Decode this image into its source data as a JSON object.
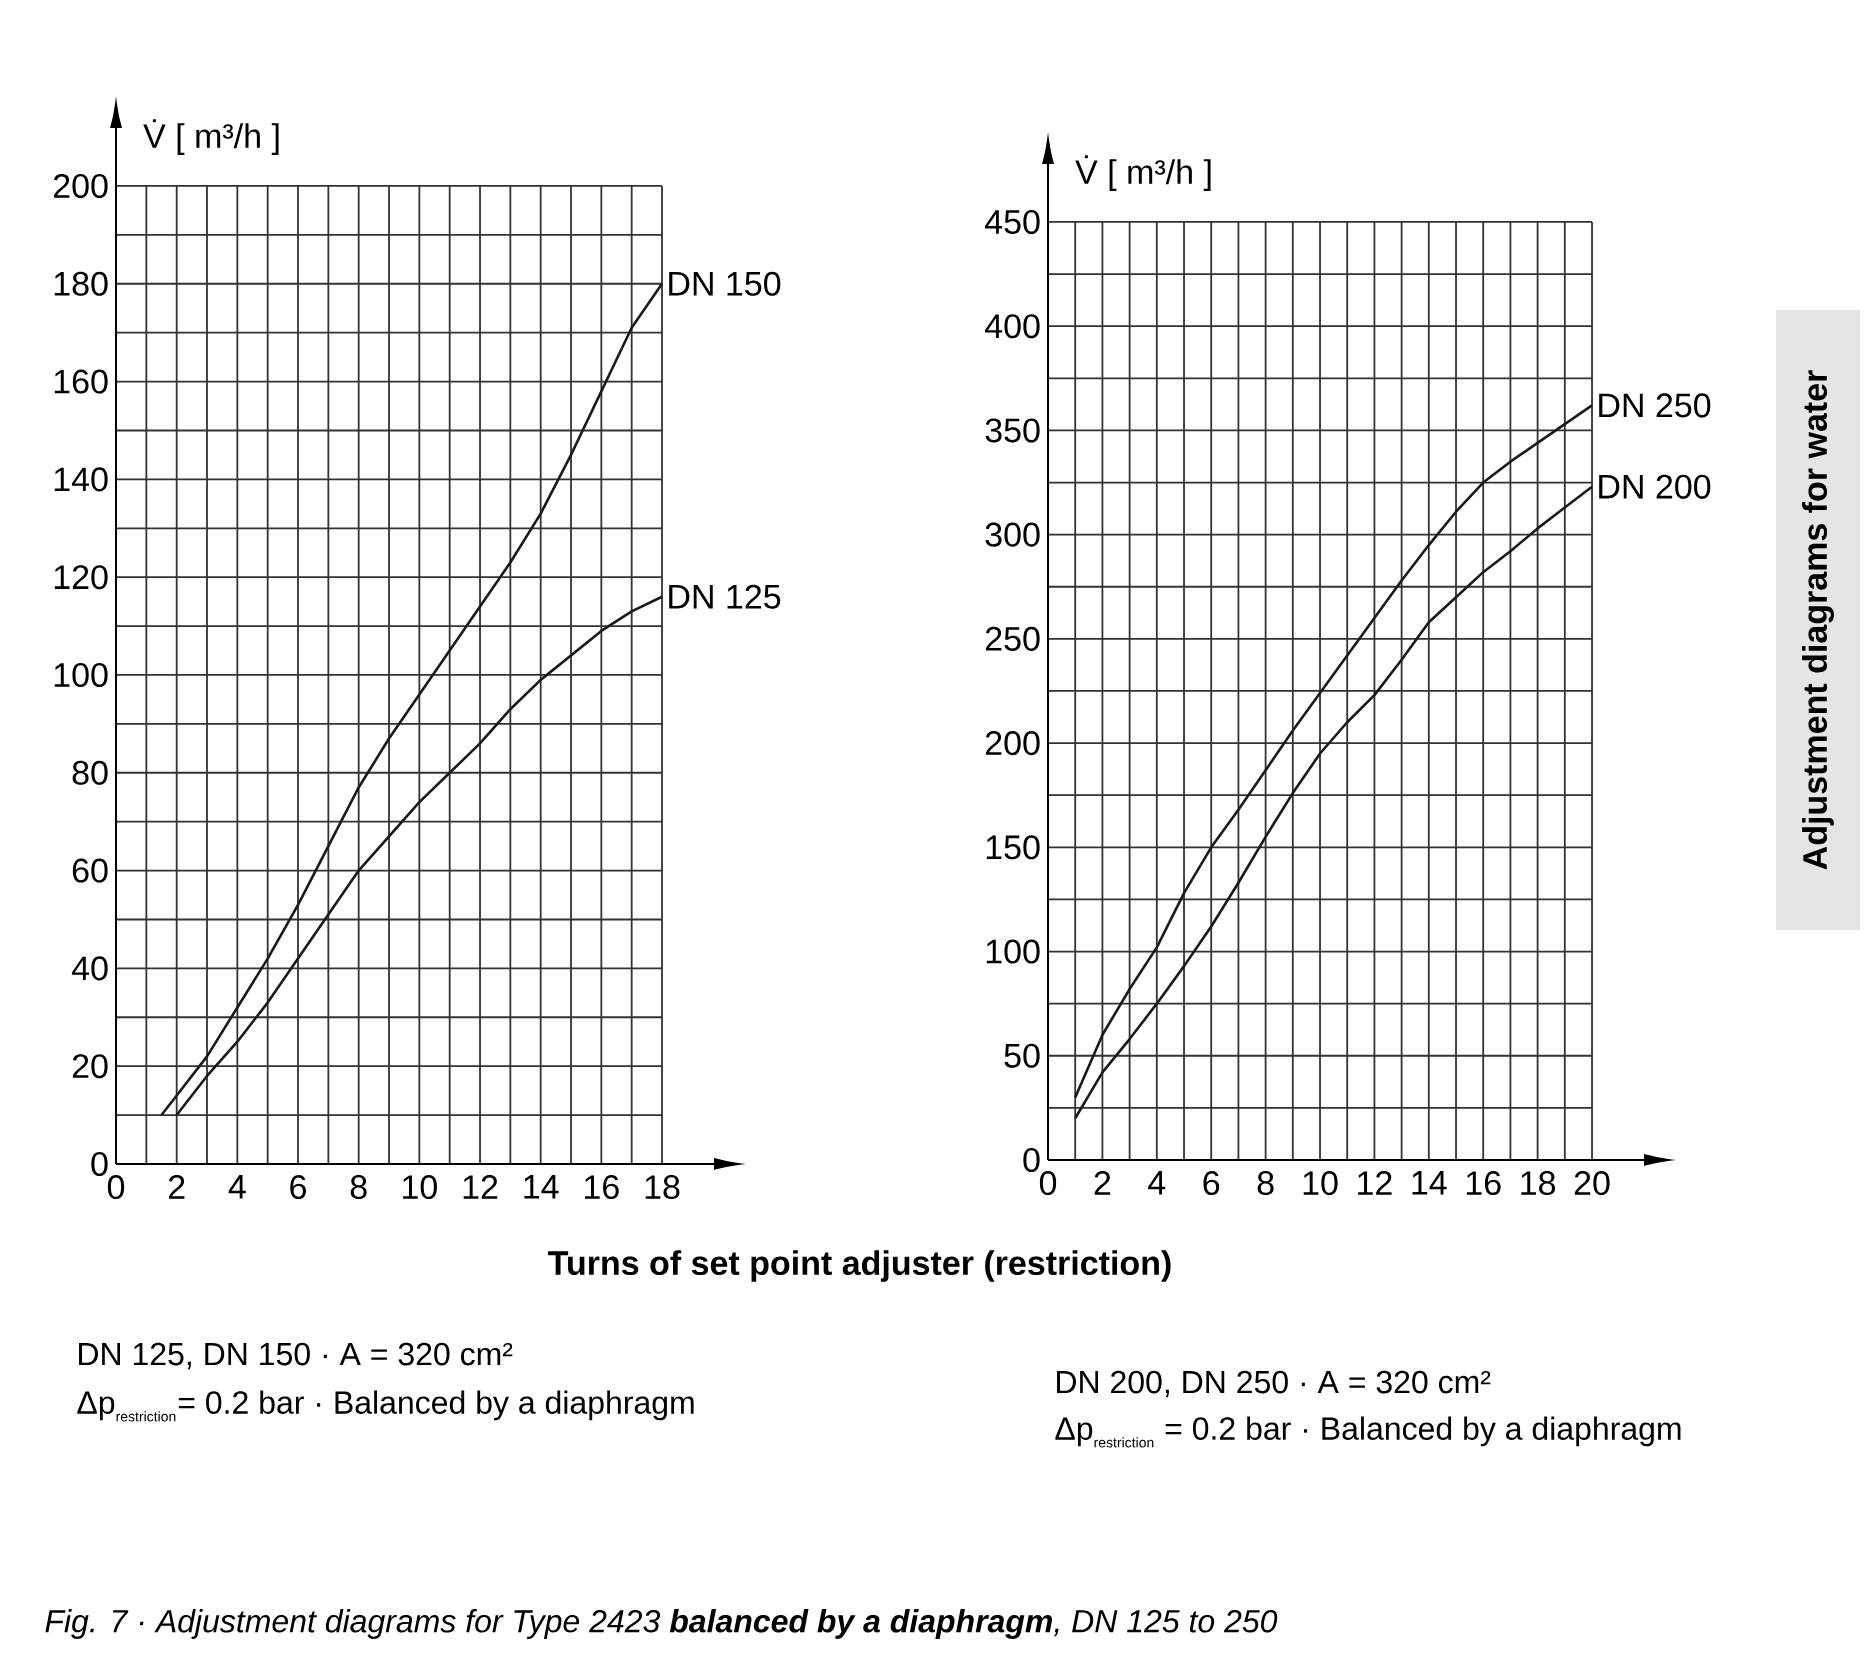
{
  "chart_data": [
    {
      "type": "line",
      "ylabel": "V̇  [ m³/h ]",
      "xlabel": "Turns of set point adjuster (restriction)",
      "xlim": [
        0,
        18
      ],
      "ylim": [
        0,
        200
      ],
      "xticks": [
        0,
        {
          "value": 1,
          "label": null
        },
        2,
        {
          "value": 3,
          "label": null
        },
        4,
        {
          "value": 5,
          "label": null
        },
        6,
        {
          "value": 7,
          "label": null
        },
        8,
        {
          "value": 9,
          "label": null
        },
        10,
        {
          "value": 11,
          "label": null
        },
        12,
        {
          "value": 13,
          "label": null
        },
        14,
        {
          "value": 15,
          "label": null
        },
        16,
        {
          "value": 17,
          "label": null
        },
        18
      ],
      "yticks": [
        0,
        {
          "value": 10,
          "label": null
        },
        20,
        {
          "value": 30,
          "label": null
        },
        40,
        {
          "value": 50,
          "label": null
        },
        60,
        {
          "value": 70,
          "label": null
        },
        80,
        {
          "value": 90,
          "label": null
        },
        100,
        {
          "value": 110,
          "label": null
        },
        120,
        {
          "value": 130,
          "label": null
        },
        140,
        {
          "value": 150,
          "label": null
        },
        160,
        {
          "value": 170,
          "label": null
        },
        180,
        {
          "value": 190,
          "label": null
        },
        200
      ],
      "grid": true,
      "series": [
        {
          "name": "DN 150",
          "color": "#1a1a1a",
          "x": [
            1.5,
            2,
            3,
            4,
            5,
            6,
            7,
            8,
            9,
            10,
            11,
            12,
            13,
            14,
            15,
            16,
            17,
            18
          ],
          "values": [
            10,
            14,
            22,
            32,
            42,
            53,
            65,
            77,
            87,
            96,
            105,
            114,
            123,
            133,
            145,
            158,
            171,
            180
          ]
        },
        {
          "name": "DN 125",
          "color": "#1a1a1a",
          "x": [
            2,
            3,
            4,
            5,
            6,
            7,
            8,
            9,
            10,
            11,
            12,
            13,
            14,
            15,
            16,
            17,
            18
          ],
          "values": [
            10,
            18,
            25,
            33,
            42,
            51,
            60,
            67,
            74,
            80,
            86,
            93,
            99,
            104,
            109,
            113,
            116
          ]
        }
      ],
      "annotations": [
        "DN 125, DN 150 · A = 320 cm²",
        "\\mbox{Δp}_{\\mbox{\\scriptsize restriction}}\\mbox{= 0.2 bar · Balanced by a diaphragm}",
        "Fig. 7 ·  Adjustment diagrams for Type 2423 **balanced by a diaphragm**, DN 125 to 250"
      ]
    },
    {
      "type": "line",
      "ylabel": "V̇  [ m³/h ]",
      "xlim": [
        0,
        20
      ],
      "ylim": [
        0,
        450
      ],
      "xticks": [
        0,
        {
          "value": 1,
          "label": null
        },
        2,
        {
          "value": 3,
          "label": null
        },
        4,
        {
          "value": 5,
          "label": null
        },
        6,
        {
          "value": 7,
          "label": null
        },
        8,
        {
          "value": 9,
          "label": null
        },
        10,
        {
          "value": 11,
          "label": null
        },
        12,
        {
          "value": 13,
          "label": null
        },
        14,
        {
          "value": 15,
          "label": null
        },
        16,
        {
          "value": 17,
          "label": null
        },
        18,
        {
          "value": 19,
          "label": null
        },
        20
      ],
      "yticks": [
        0,
        {
          "value": 25,
          "label": null
        },
        50,
        {
          "value": 75,
          "label": null
        },
        100,
        {
          "value": 125,
          "label": null
        },
        150,
        {
          "value": 175,
          "label": null
        },
        200,
        {
          "value": 225,
          "label": null
        },
        250,
        {
          "value": 275,
          "label": null
        },
        300,
        {
          "value": 325,
          "label": null
        },
        350,
        {
          "value": 375,
          "label": null
        },
        400,
        {
          "value": 425,
          "label": null
        },
        450
      ],
      "grid": true,
      "series": [
        {
          "name": "DN 250",
          "color": "#1a1a1a",
          "x": [
            1,
            2,
            3,
            4,
            5,
            6,
            7,
            8,
            9,
            10,
            11,
            12,
            13,
            14,
            15,
            16,
            17,
            18,
            19,
            20
          ],
          "values": [
            30,
            60,
            82,
            102,
            128,
            150,
            168,
            187,
            206,
            224,
            242,
            260,
            278,
            295,
            311,
            325,
            335,
            344,
            353,
            362
          ]
        },
        {
          "name": "DN 200",
          "color": "#1a1a1a",
          "x": [
            1,
            2,
            3,
            4,
            5,
            6,
            7,
            8,
            9,
            10,
            11,
            12,
            13,
            14,
            15,
            16,
            17,
            18,
            19,
            20
          ],
          "values": [
            20,
            42,
            58,
            75,
            93,
            112,
            133,
            155,
            176,
            195,
            210,
            223,
            240,
            258,
            270,
            282,
            292,
            303,
            313,
            323
          ]
        }
      ],
      "annotations": [
        "DN 200, DN 250 · A = 320 cm²",
        "\\mbox{Δp}_{\\mbox{\\scriptsize restriction}}\\mbox{ = 0.2 bar · Balanced by a diaphragm}",
        "Adjustment diagrams for water"
      ]
    }
  ]
}
